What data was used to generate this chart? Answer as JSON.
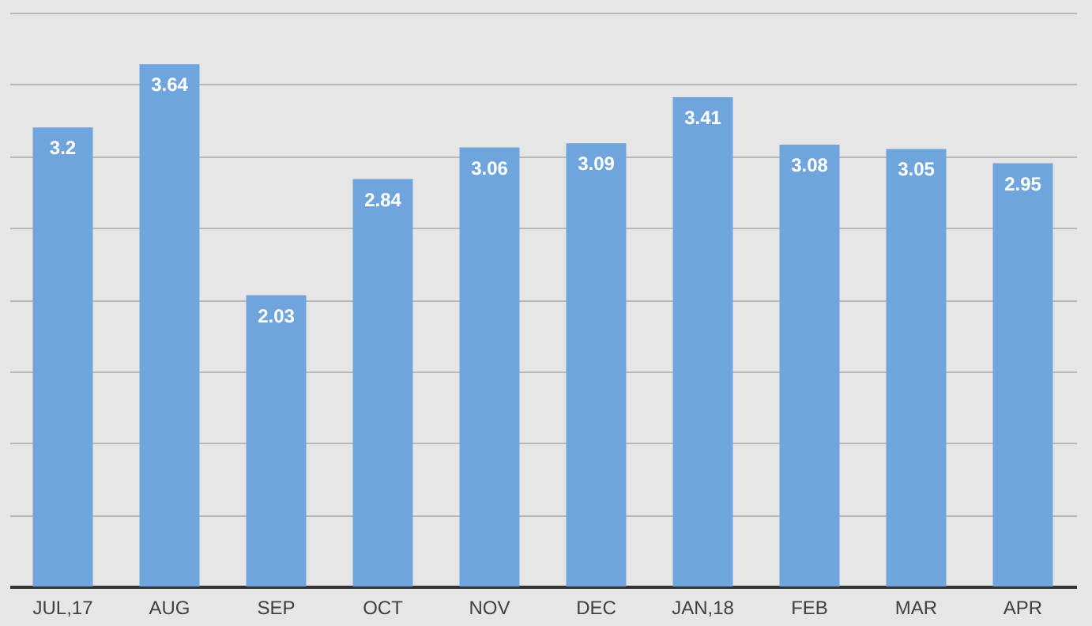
{
  "chart_data": {
    "type": "bar",
    "categories": [
      "JUL,17",
      "AUG",
      "SEP",
      "OCT",
      "NOV",
      "DEC",
      "JAN,18",
      "FEB",
      "MAR",
      "APR"
    ],
    "values": [
      3.2,
      3.64,
      2.03,
      2.84,
      3.06,
      3.09,
      3.41,
      3.08,
      3.05,
      2.95
    ],
    "color": "#6fa5dc",
    "ylim": [
      0,
      4
    ],
    "yticks": [
      {
        "value": 0,
        "label": null
      },
      {
        "value": 0.5,
        "label": null
      },
      {
        "value": 1,
        "label": null
      },
      {
        "value": 1.5,
        "label": null
      },
      {
        "value": 2,
        "label": null
      },
      {
        "value": 2.5,
        "label": null
      },
      {
        "value": 3,
        "label": null
      },
      {
        "value": 3.5,
        "label": null
      },
      {
        "value": 4,
        "label": null
      }
    ],
    "tick_labels": "x",
    "grid": "y",
    "data_labels": true
  }
}
